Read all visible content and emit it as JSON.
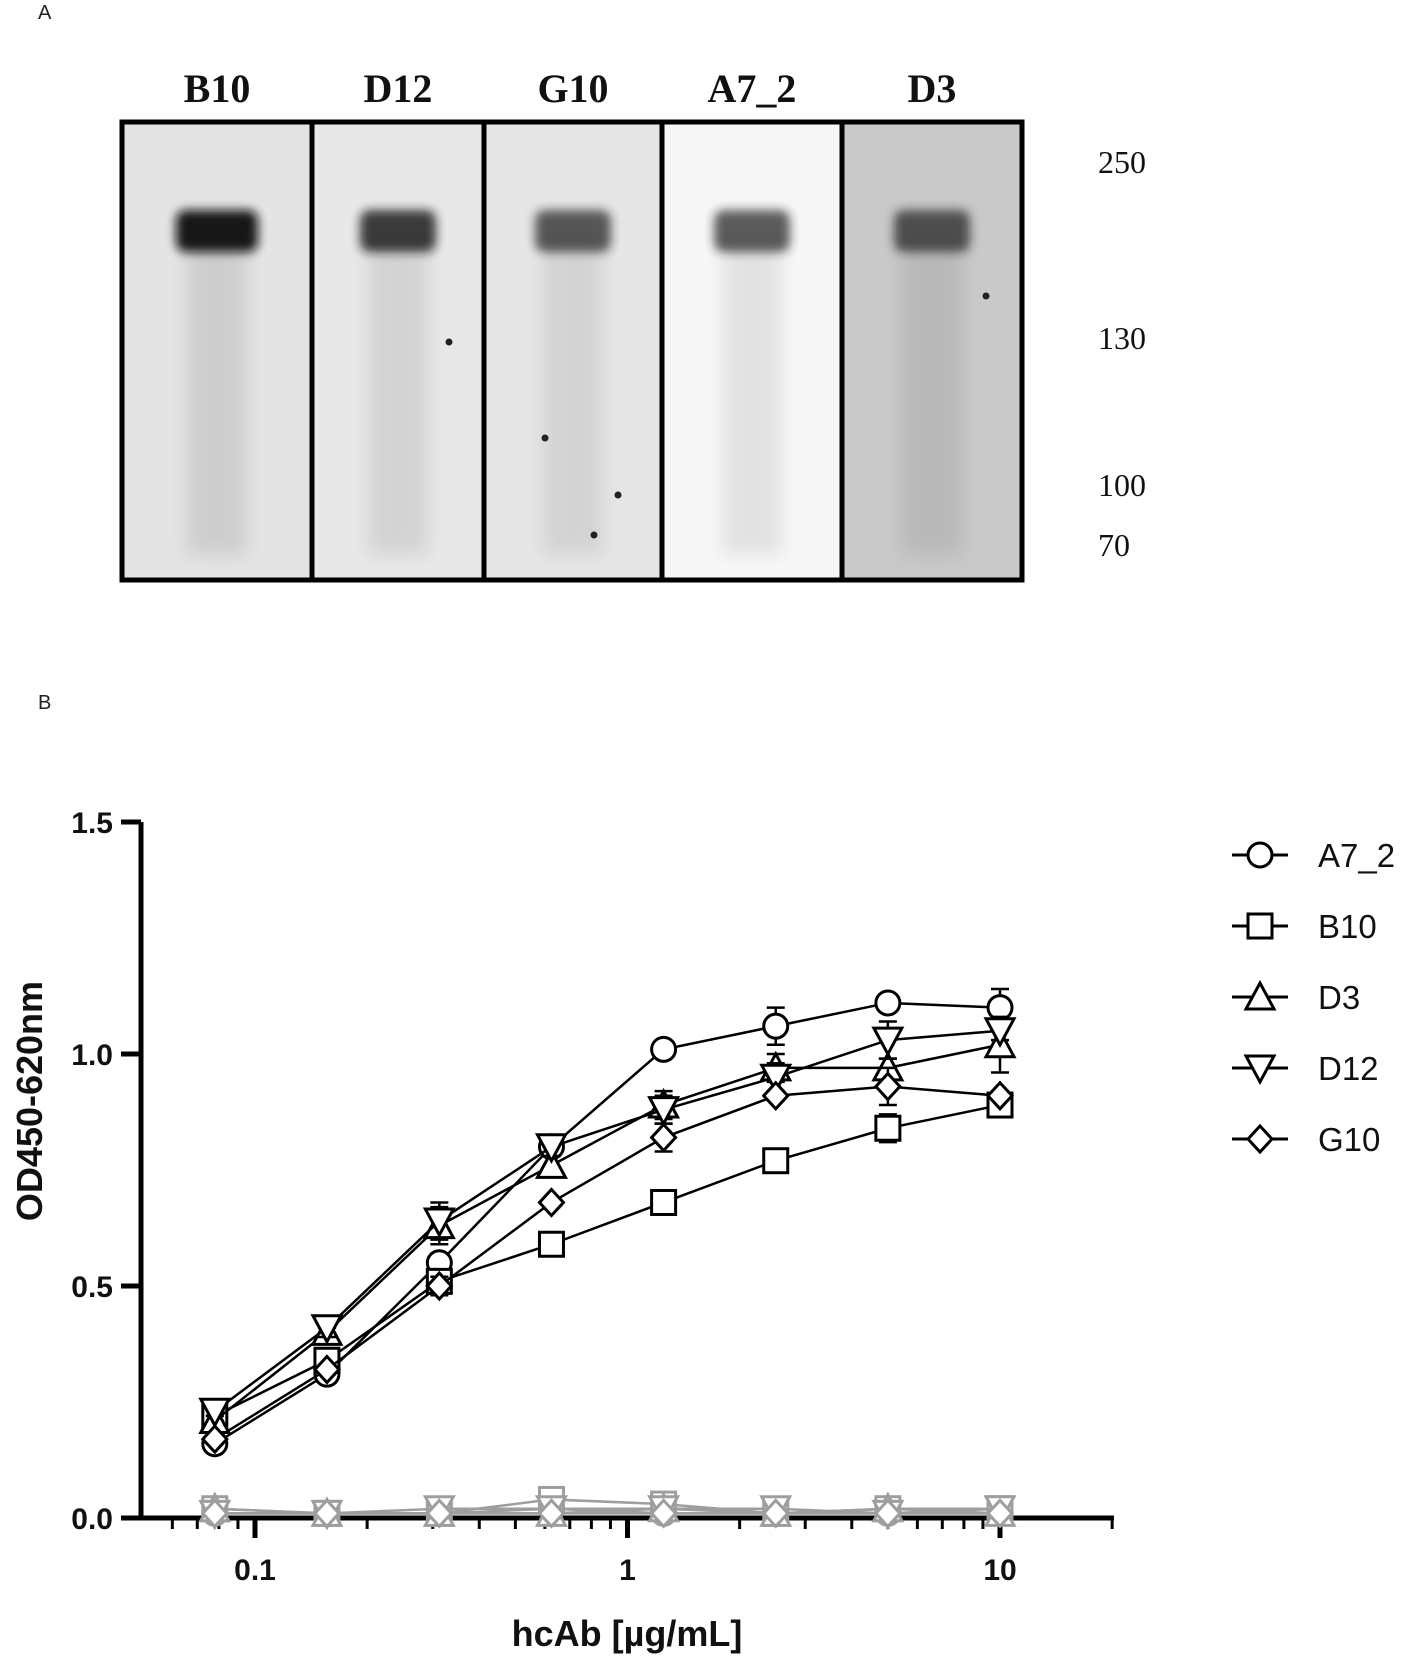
{
  "figure": {
    "panel_a_label": "A",
    "panel_b_label": "B"
  },
  "blot": {
    "lanes": [
      {
        "label": "B10",
        "band_intensity": 0.92,
        "background": "#e4e4e4"
      },
      {
        "label": "D12",
        "band_intensity": 0.72,
        "background": "#e8e8e8"
      },
      {
        "label": "G10",
        "band_intensity": 0.55,
        "background": "#e6e6e6"
      },
      {
        "label": "A7_2",
        "band_intensity": 0.55,
        "background": "#f7f7f7"
      },
      {
        "label": "D3",
        "band_intensity": 0.55,
        "background": "#c9c9c9"
      }
    ],
    "markers": [
      "250",
      "130",
      "100",
      "70"
    ]
  },
  "chart_data": {
    "type": "line",
    "xscale": "log",
    "xlabel": "hcAb [µg/mL]",
    "ylabel": "OD450-620nm",
    "xlim": [
      0.06,
      20
    ],
    "ylim": [
      0,
      1.5
    ],
    "xticks": [
      0.1,
      1,
      10
    ],
    "xtick_labels": [
      "0.1",
      "1",
      "10"
    ],
    "yticks": [
      0.0,
      0.5,
      1.0,
      1.5
    ],
    "ytick_labels": [
      "0.0",
      "0.5",
      "1.0",
      "1.5"
    ],
    "legend_position": "right",
    "x": [
      0.078,
      0.156,
      0.3125,
      0.625,
      1.25,
      2.5,
      5,
      10
    ],
    "series": [
      {
        "name": "A7_2",
        "marker": "circle",
        "color": "#000000",
        "values": [
          0.16,
          0.31,
          0.55,
          0.8,
          1.01,
          1.06,
          1.11,
          1.1
        ],
        "errors": [
          0.01,
          0.01,
          0.02,
          0.01,
          0.01,
          0.04,
          0.01,
          0.04
        ]
      },
      {
        "name": "B10",
        "marker": "square",
        "color": "#000000",
        "values": [
          0.22,
          0.34,
          0.51,
          0.59,
          0.68,
          0.77,
          0.84,
          0.89
        ],
        "errors": [
          0.01,
          0.02,
          0.02,
          0.01,
          0.01,
          0.01,
          0.03,
          0.02
        ]
      },
      {
        "name": "D3",
        "marker": "triangle-up",
        "color": "#000000",
        "values": [
          0.21,
          0.4,
          0.63,
          0.76,
          0.89,
          0.97,
          0.97,
          1.02
        ],
        "errors": [
          0.01,
          0.01,
          0.04,
          0.02,
          0.03,
          0.03,
          0.02,
          0.06
        ]
      },
      {
        "name": "D12",
        "marker": "triangle-down",
        "color": "#000000",
        "values": [
          0.23,
          0.41,
          0.64,
          0.8,
          0.88,
          0.95,
          1.03,
          1.05
        ],
        "errors": [
          0.01,
          0.02,
          0.04,
          0.02,
          0.03,
          0.03,
          0.04,
          0.02
        ]
      },
      {
        "name": "G10",
        "marker": "diamond",
        "color": "#000000",
        "values": [
          0.17,
          0.32,
          0.5,
          0.68,
          0.82,
          0.91,
          0.93,
          0.91
        ],
        "errors": [
          0.01,
          0.01,
          0.02,
          0.01,
          0.03,
          0.01,
          0.04,
          0.01
        ]
      }
    ],
    "control_series": [
      {
        "marker": "circle",
        "color": "#9e9e9e",
        "values": [
          0.01,
          0.01,
          0.01,
          0.02,
          0.01,
          0.01,
          0.01,
          0.01
        ]
      },
      {
        "marker": "square",
        "color": "#9e9e9e",
        "values": [
          0.02,
          0.01,
          0.01,
          0.04,
          0.03,
          0.01,
          0.02,
          0.02
        ]
      },
      {
        "marker": "triangle-up",
        "color": "#9e9e9e",
        "values": [
          0.02,
          0.01,
          0.01,
          0.01,
          0.02,
          0.01,
          0.02,
          0.01
        ]
      },
      {
        "marker": "triangle-down",
        "color": "#9e9e9e",
        "values": [
          0.01,
          0.01,
          0.02,
          0.02,
          0.02,
          0.02,
          0.01,
          0.02
        ]
      },
      {
        "marker": "diamond",
        "color": "#9e9e9e",
        "values": [
          0.01,
          0.01,
          0.01,
          0.01,
          0.01,
          0.01,
          0.01,
          0.01
        ]
      }
    ]
  }
}
